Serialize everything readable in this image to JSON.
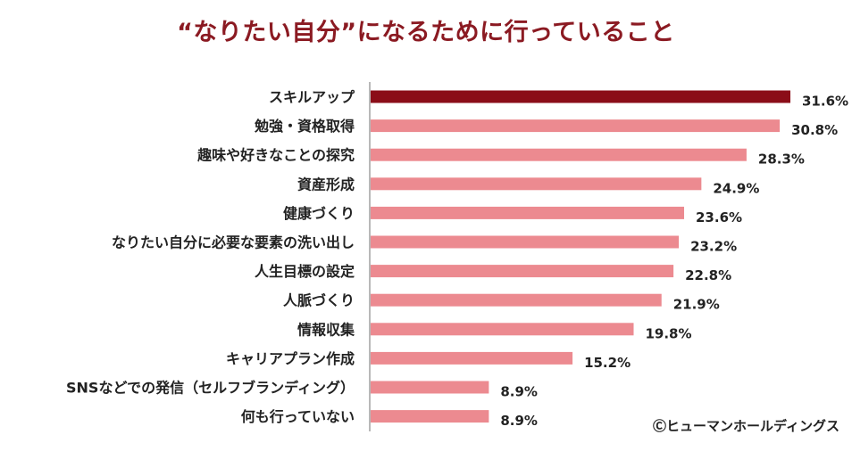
{
  "chart_data": {
    "type": "bar",
    "orientation": "horizontal",
    "title": "“なりたい自分”になるために行っていること",
    "categories": [
      "スキルアップ",
      "勉強・資格取得",
      "趣味や好きなことの探究",
      "資産形成",
      "健康づくり",
      "なりたい自分に必要な要素の洗い出し",
      "人生目標の設定",
      "人脈づくり",
      "情報収集",
      "キャリアプラン作成",
      "SNSなどでの発信（セルフブランディング）",
      "何も行っていない"
    ],
    "values": [
      31.6,
      30.8,
      28.3,
      24.9,
      23.6,
      23.2,
      22.8,
      21.9,
      19.8,
      15.2,
      8.9,
      8.9
    ],
    "value_labels": [
      "31.6%",
      "30.8%",
      "28.3%",
      "24.9%",
      "23.6%",
      "23.2%",
      "22.8%",
      "21.9%",
      "19.8%",
      "15.2%",
      "8.9%",
      "8.9%"
    ],
    "unit": "%",
    "xlim": [
      0,
      35
    ],
    "highlight_index": 0,
    "colors": {
      "highlight": "#8b0d18",
      "bar": "#ec8a90",
      "axis": "#a0a0a0"
    }
  },
  "footer": {
    "copyright": "Ⓒヒューマンホールディングス"
  }
}
